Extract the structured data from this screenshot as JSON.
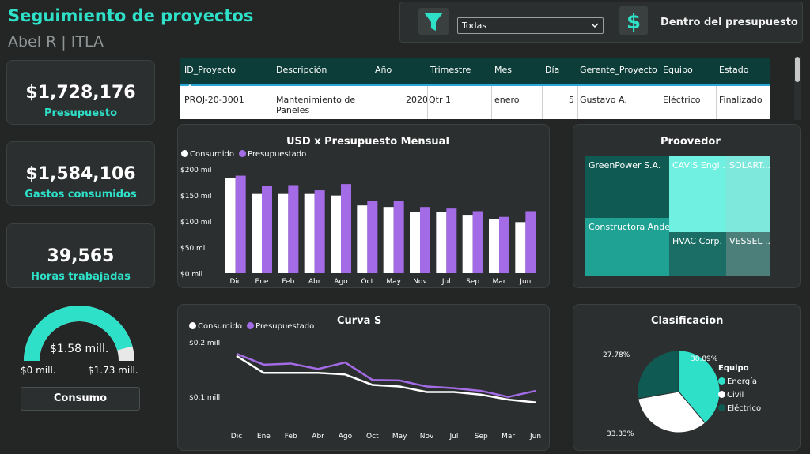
{
  "header": {
    "title": "Seguimiento de proyectos",
    "subtitle": "Abel R | ITLA"
  },
  "filter": {
    "selected": "Todas",
    "budget_status": "Dentro del presupuesto",
    "colors": {
      "accent": "#2ee0c8"
    }
  },
  "kpis": [
    {
      "value": "$1,728,176",
      "label": "Presupuesto"
    },
    {
      "value": "$1,584,106",
      "label": "Gastos consumidos"
    },
    {
      "value": "39,565",
      "label": "Horas trabajadas"
    }
  ],
  "gauge": {
    "value_label": "$1.58 mill.",
    "min_label": "$0 mill.",
    "max_label": "$1.73 mill.",
    "fraction": 0.914,
    "button_label": "Consumo"
  },
  "table": {
    "headers": [
      "ID_Proyecto",
      "Descripción",
      "Año",
      "Trimestre",
      "Mes",
      "Día",
      "Gerente_Proyecto",
      "Equipo",
      "Estado"
    ],
    "rows": [
      [
        "PROJ-20-3001",
        "Mantenimiento de Paneles",
        "2020",
        "Qtr 1",
        "enero",
        "5",
        "Gustavo A.",
        "Eléctrico",
        "Finalizado"
      ]
    ]
  },
  "bar_panel": {
    "title": "USD x Presupuesto Mensual",
    "legend": [
      "Consumido",
      "Presupuestado"
    ]
  },
  "line_panel": {
    "title": "Curva S",
    "legend": [
      "Consumido",
      "Presupuestado"
    ]
  },
  "treemap": {
    "title": "Proovedor",
    "items": [
      {
        "name": "GreenPower S.A.",
        "color": "#0f5a52"
      },
      {
        "name": "Constructora Andes",
        "color": "#1fa293"
      },
      {
        "name": "CAVIS Engi...",
        "color": "#6ff0e0"
      },
      {
        "name": "SOLART...",
        "color": "#7de8db"
      },
      {
        "name": "HVAC Corp.",
        "color": "#1b6e66"
      },
      {
        "name": "VESSEL ...",
        "color": "#4d7f7a"
      }
    ]
  },
  "pie_panel": {
    "title": "Clasificacion",
    "legend_title": "Equipo",
    "slice_labels": [
      "38.89%",
      "33.33%",
      "27.78%"
    ]
  },
  "chart_data": [
    {
      "type": "bar",
      "title": "USD x Presupuesto Mensual",
      "categories": [
        "Dic",
        "Ene",
        "Feb",
        "Abr",
        "Ago",
        "Oct",
        "May",
        "Nov",
        "Jul",
        "Sep",
        "Mar",
        "Jun"
      ],
      "series": [
        {
          "name": "Consumido",
          "values": [
            183,
            152,
            152,
            152,
            149,
            130,
            127,
            117,
            117,
            112,
            103,
            98
          ],
          "color": "#ffffff"
        },
        {
          "name": "Presupuestado",
          "values": [
            187,
            167,
            169,
            159,
            171,
            139,
            138,
            127,
            124,
            119,
            108,
            119
          ],
          "color": "#a46be6"
        }
      ],
      "yticks": [
        "$0 mil",
        "$50 mil",
        "$100 mil",
        "$150 mil",
        "$200 mil"
      ],
      "ylim": [
        0,
        200
      ]
    },
    {
      "type": "line",
      "title": "Curva S",
      "categories": [
        "Dic",
        "Ene",
        "Feb",
        "Abr",
        "Ago",
        "Oct",
        "May",
        "Nov",
        "Jul",
        "Sep",
        "Mar",
        "Jun"
      ],
      "series": [
        {
          "name": "Consumido",
          "values": [
            0.183,
            0.152,
            0.152,
            0.152,
            0.149,
            0.13,
            0.127,
            0.117,
            0.117,
            0.112,
            0.103,
            0.098
          ],
          "color": "#ffffff"
        },
        {
          "name": "Presupuestado",
          "values": [
            0.187,
            0.167,
            0.169,
            0.159,
            0.171,
            0.139,
            0.138,
            0.127,
            0.124,
            0.119,
            0.108,
            0.119
          ],
          "color": "#a46be6"
        }
      ],
      "yticks": [
        "$0.1 mill.",
        "$0.2 mill."
      ],
      "ylim": [
        0.07,
        0.2
      ]
    },
    {
      "type": "pie",
      "title": "Clasificacion",
      "slices": [
        {
          "name": "Energía",
          "value": 38.89,
          "label": "38.89%",
          "color": "#2ee0c8"
        },
        {
          "name": "Civil",
          "value": 33.33,
          "label": "33.33%",
          "color": "#ffffff"
        },
        {
          "name": "Eléctrico",
          "value": 27.78,
          "label": "27.78%",
          "color": "#0f5a52"
        }
      ]
    }
  ]
}
